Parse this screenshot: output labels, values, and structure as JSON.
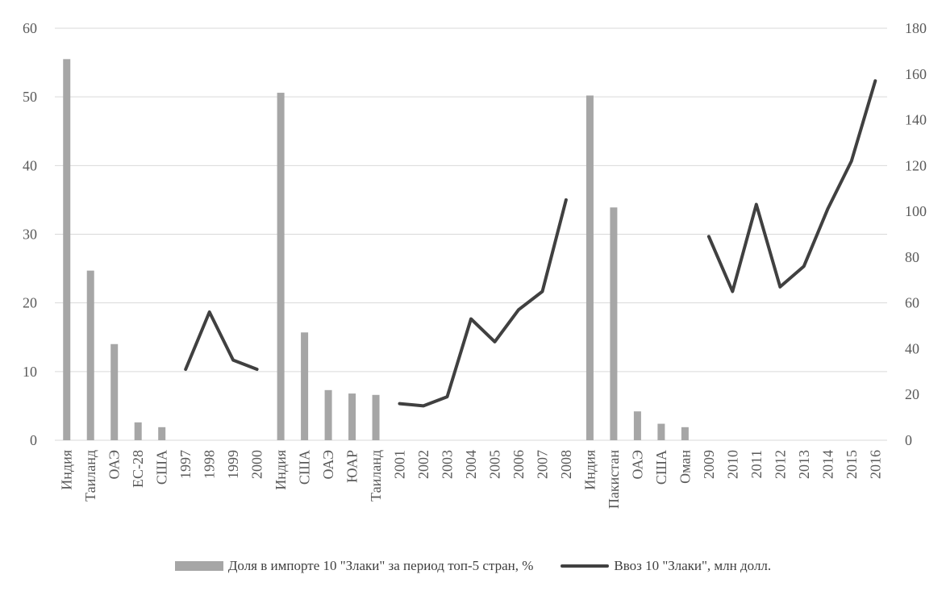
{
  "chart_data": {
    "type": "bar",
    "categories": [
      "Индия",
      "Таиланд",
      "ОАЭ",
      "ЕС-28",
      "США",
      "1997",
      "1998",
      "1999",
      "2000",
      "Индия",
      "США",
      "ОАЭ",
      "ЮАР",
      "Таиланд",
      "2001",
      "2002",
      "2003",
      "2004",
      "2005",
      "2006",
      "2007",
      "2008",
      "Индия",
      "Пакистан",
      "ОАЭ",
      "США",
      "Оман",
      "2009",
      "2010",
      "2011",
      "2012",
      "2013",
      "2014",
      "2015",
      "2016"
    ],
    "series": [
      {
        "name": "Доля  в импорте 10 \"Злаки\" за период топ-5 стран,  %",
        "type": "bar",
        "axis": "left",
        "color": "#a6a6a6",
        "values": [
          55.5,
          24.7,
          14,
          2.6,
          1.9,
          null,
          null,
          null,
          null,
          50.6,
          15.7,
          7.3,
          6.8,
          6.6,
          null,
          null,
          null,
          null,
          null,
          null,
          null,
          null,
          50.2,
          33.9,
          4.2,
          2.4,
          1.9,
          null,
          null,
          null,
          null,
          null,
          null,
          null,
          null
        ]
      },
      {
        "name": "Ввоз 10 \"Злаки\", млн долл.",
        "type": "line",
        "axis": "right",
        "color": "#404040",
        "segments": [
          {
            "x": [
              "1997",
              "1998",
              "1999",
              "2000"
            ],
            "values": [
              31,
              56,
              35,
              31
            ]
          },
          {
            "x": [
              "2001",
              "2002",
              "2003",
              "2004",
              "2005",
              "2006",
              "2007",
              "2008"
            ],
            "values": [
              16,
              15,
              19,
              53,
              43,
              57,
              65,
              105
            ]
          },
          {
            "x": [
              "2009",
              "2010",
              "2011",
              "2012",
              "2013",
              "2014",
              "2015",
              "2016"
            ],
            "values": [
              89,
              65,
              103,
              67,
              76,
              101,
              122,
              157
            ]
          }
        ]
      }
    ],
    "y_left": {
      "min": 0,
      "max": 60,
      "ticks": [
        "0",
        "10",
        "20",
        "30",
        "40",
        "50",
        "60"
      ]
    },
    "y_right": {
      "min": 0,
      "max": 180,
      "ticks": [
        "0",
        "20",
        "40",
        "60",
        "80",
        "100",
        "120",
        "140",
        "160",
        "180"
      ]
    },
    "grid": true,
    "legend_position": "bottom"
  }
}
